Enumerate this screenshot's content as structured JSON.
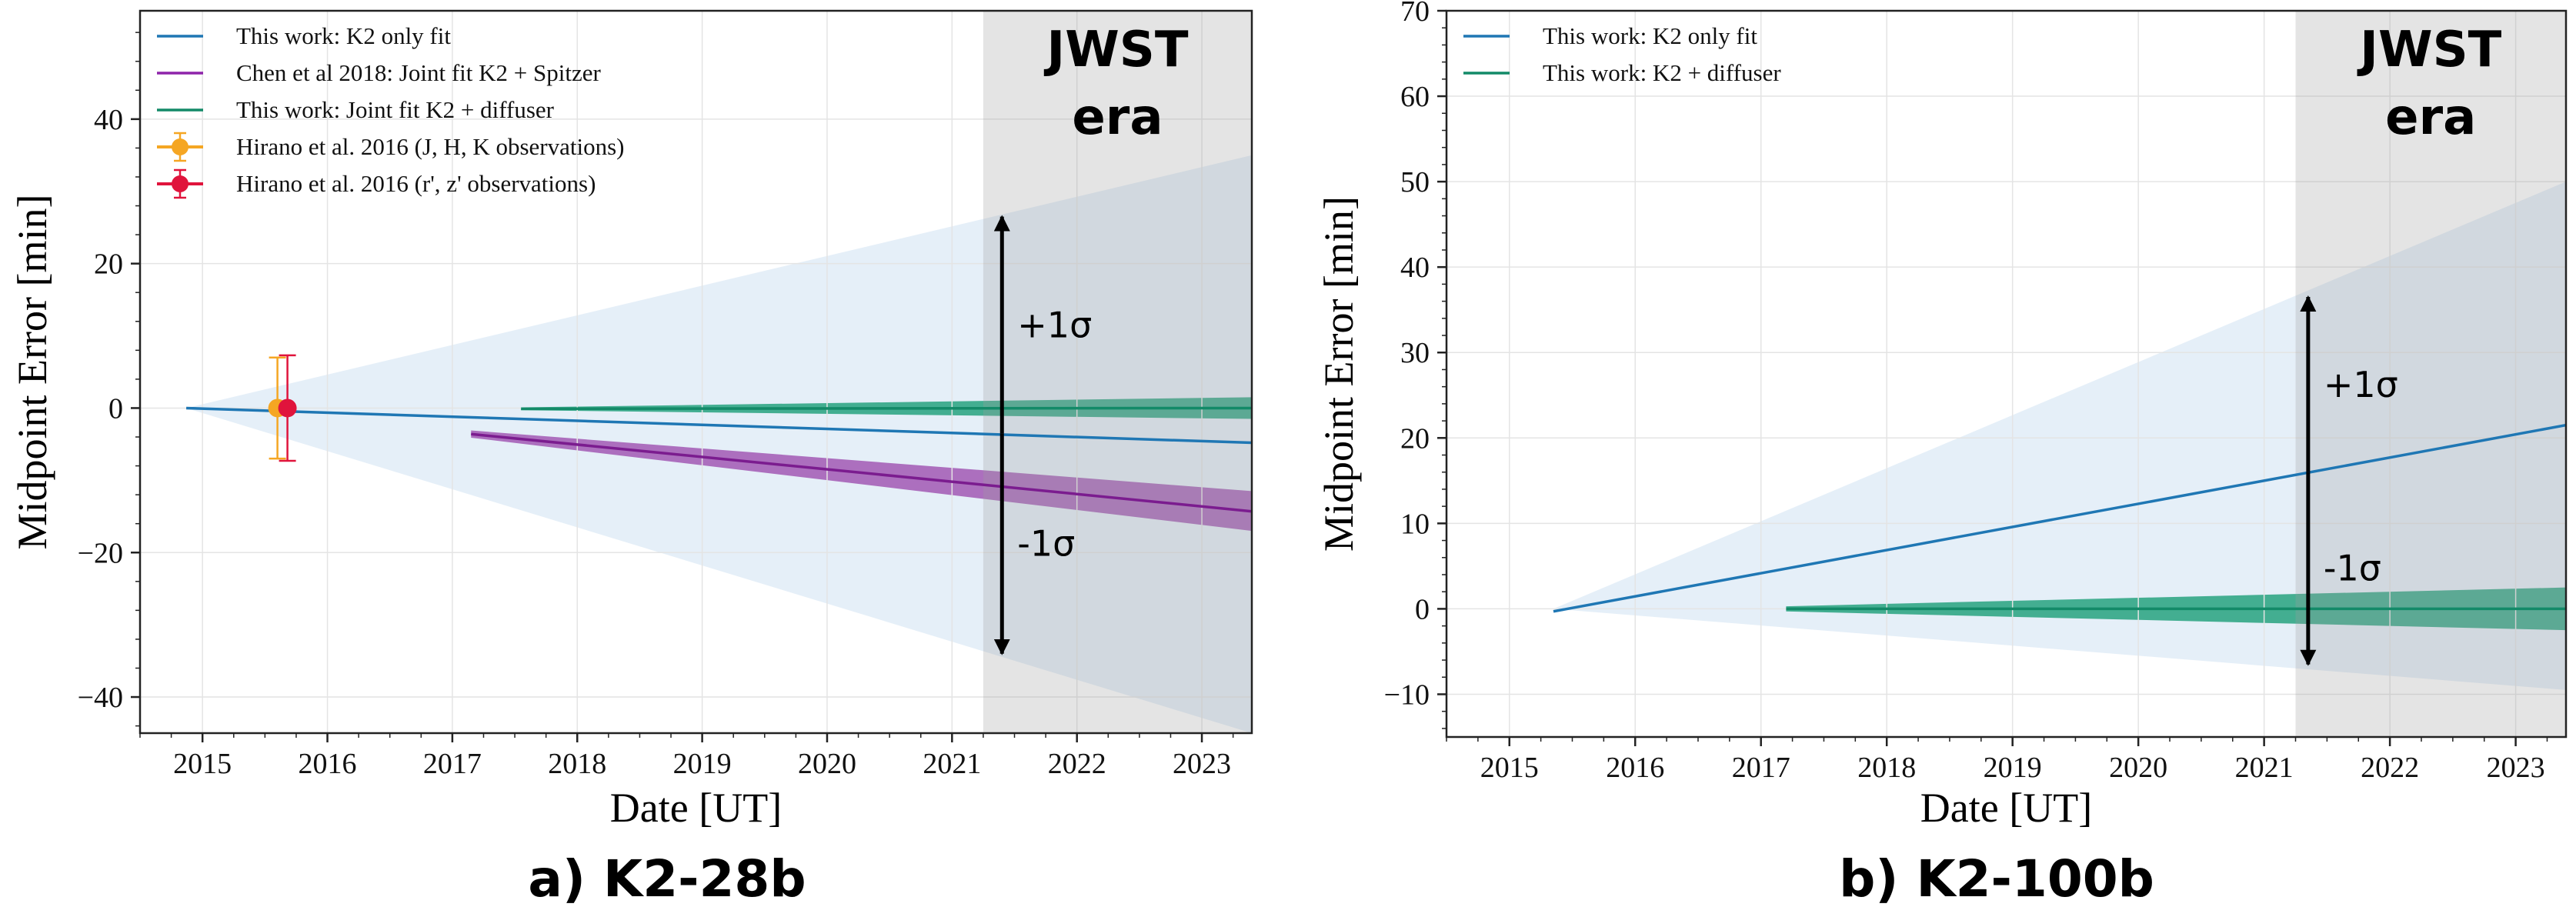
{
  "chart_data": [
    {
      "type": "line",
      "caption": "a) K2-28b",
      "xlabel": "Date [UT]",
      "ylabel": "Midpoint Error [min]",
      "xlim": [
        2014.5,
        2023.4
      ],
      "ylim": [
        -45,
        55
      ],
      "xticks": [
        2015,
        2016,
        2017,
        2018,
        2019,
        2020,
        2021,
        2022,
        2023
      ],
      "yticks": [
        -40,
        -20,
        0,
        20,
        40
      ],
      "grid": true,
      "legend_position": "top-left",
      "era": {
        "label_line1": "JWST",
        "label_line2": "era",
        "x_start": 2021.25
      },
      "arrows": [
        {
          "label": "+1σ",
          "x": 2021.4,
          "y_from": -3.5,
          "y_to": 26.5
        },
        {
          "label": "-1σ",
          "x": 2021.4,
          "y_from": -3.5,
          "y_to": -34
        }
      ],
      "bands": [
        {
          "series": "This work: K2 only fit",
          "color": "#c6dcef",
          "opacity": 0.45,
          "x": [
            2014.87,
            2023.4
          ],
          "upper": [
            0,
            35
          ],
          "lower": [
            0,
            -45
          ]
        },
        {
          "series": "Chen et al 2018: Joint fit K2 + Spitzer",
          "color": "#8e2a9e",
          "opacity": 0.65,
          "x": [
            2017.15,
            2023.4
          ],
          "upper": [
            -3.1,
            -11.5
          ],
          "lower": [
            -4.1,
            -17.0
          ]
        },
        {
          "series": "This work: Joint fit K2 + diffuser",
          "color": "#1a9e77",
          "opacity": 0.8,
          "x": [
            2017.55,
            2023.4
          ],
          "upper": [
            0.1,
            1.5
          ],
          "lower": [
            -0.3,
            -1.5
          ]
        }
      ],
      "series": [
        {
          "name": "This work: K2 only fit",
          "color": "#1f77b4",
          "x": [
            2014.87,
            2023.4
          ],
          "y": [
            0,
            -4.8
          ]
        },
        {
          "name": "Chen et al 2018: Joint fit K2 + Spitzer",
          "color": "#7b1c8f",
          "x": [
            2017.15,
            2023.4
          ],
          "y": [
            -3.6,
            -14.3
          ]
        },
        {
          "name": "This work: Joint fit K2 + diffuser",
          "color": "#138a68",
          "x": [
            2017.55,
            2023.4
          ],
          "y": [
            -0.1,
            0.0
          ]
        }
      ],
      "errorbars": [
        {
          "name": "Hirano et al. 2016 (J, H, K observations)",
          "color": "#f5a623",
          "x": 2015.6,
          "y": 0,
          "err": 7
        },
        {
          "name": "Hirano et al. 2016 (r', z' observations)",
          "color": "#e0143c",
          "x": 2015.68,
          "y": 0,
          "err": 7.3
        }
      ],
      "legend": [
        {
          "label": "This work: K2 only fit",
          "color": "#1f77b4",
          "kind": "line"
        },
        {
          "label": "Chen et al 2018: Joint fit K2 + Spitzer",
          "color": "#8e24aa",
          "kind": "line"
        },
        {
          "label": "This work: Joint fit K2 + diffuser",
          "color": "#138a68",
          "kind": "line"
        },
        {
          "label": "Hirano et al. 2016 (J, H, K observations)",
          "color": "#f5a623",
          "kind": "errorbar"
        },
        {
          "label": "Hirano et al. 2016 (r', z' observations)",
          "color": "#e0143c",
          "kind": "errorbar"
        }
      ]
    },
    {
      "type": "line",
      "caption": "b) K2-100b",
      "xlabel": "Date [UT]",
      "ylabel": "Midpoint Error [min]",
      "xlim": [
        2014.5,
        2023.4
      ],
      "ylim": [
        -15,
        70
      ],
      "xticks": [
        2015,
        2016,
        2017,
        2018,
        2019,
        2020,
        2021,
        2022,
        2023
      ],
      "yticks": [
        -10,
        0,
        10,
        20,
        30,
        40,
        50,
        60,
        70
      ],
      "grid": true,
      "legend_position": "top-left",
      "era": {
        "label_line1": "JWST",
        "label_line2": "era",
        "x_start": 2021.25
      },
      "arrows": [
        {
          "label": "+1σ",
          "x": 2021.35,
          "y_from": 16,
          "y_to": 36.5
        },
        {
          "label": "-1σ",
          "x": 2021.35,
          "y_from": 16,
          "y_to": -6.5
        }
      ],
      "bands": [
        {
          "series": "This work: K2 only fit",
          "color": "#c6dcef",
          "opacity": 0.45,
          "x": [
            2015.35,
            2023.4
          ],
          "upper": [
            0,
            50
          ],
          "lower": [
            0,
            -9.5
          ]
        },
        {
          "series": "This work: K2 + diffuser",
          "color": "#1a9e77",
          "opacity": 0.8,
          "x": [
            2017.2,
            2023.4
          ],
          "upper": [
            0.3,
            2.5
          ],
          "lower": [
            -0.3,
            -2.5
          ]
        }
      ],
      "series": [
        {
          "name": "This work: K2 only fit",
          "color": "#1f77b4",
          "x": [
            2015.35,
            2023.4
          ],
          "y": [
            -0.3,
            21.5
          ]
        },
        {
          "name": "This work: K2 + diffuser",
          "color": "#138a68",
          "x": [
            2017.2,
            2023.4
          ],
          "y": [
            0,
            0
          ]
        }
      ],
      "errorbars": [],
      "legend": [
        {
          "label": "This work: K2 only fit",
          "color": "#1f77b4",
          "kind": "line"
        },
        {
          "label": "This work: K2 + diffuser",
          "color": "#138a68",
          "kind": "line"
        }
      ]
    }
  ]
}
